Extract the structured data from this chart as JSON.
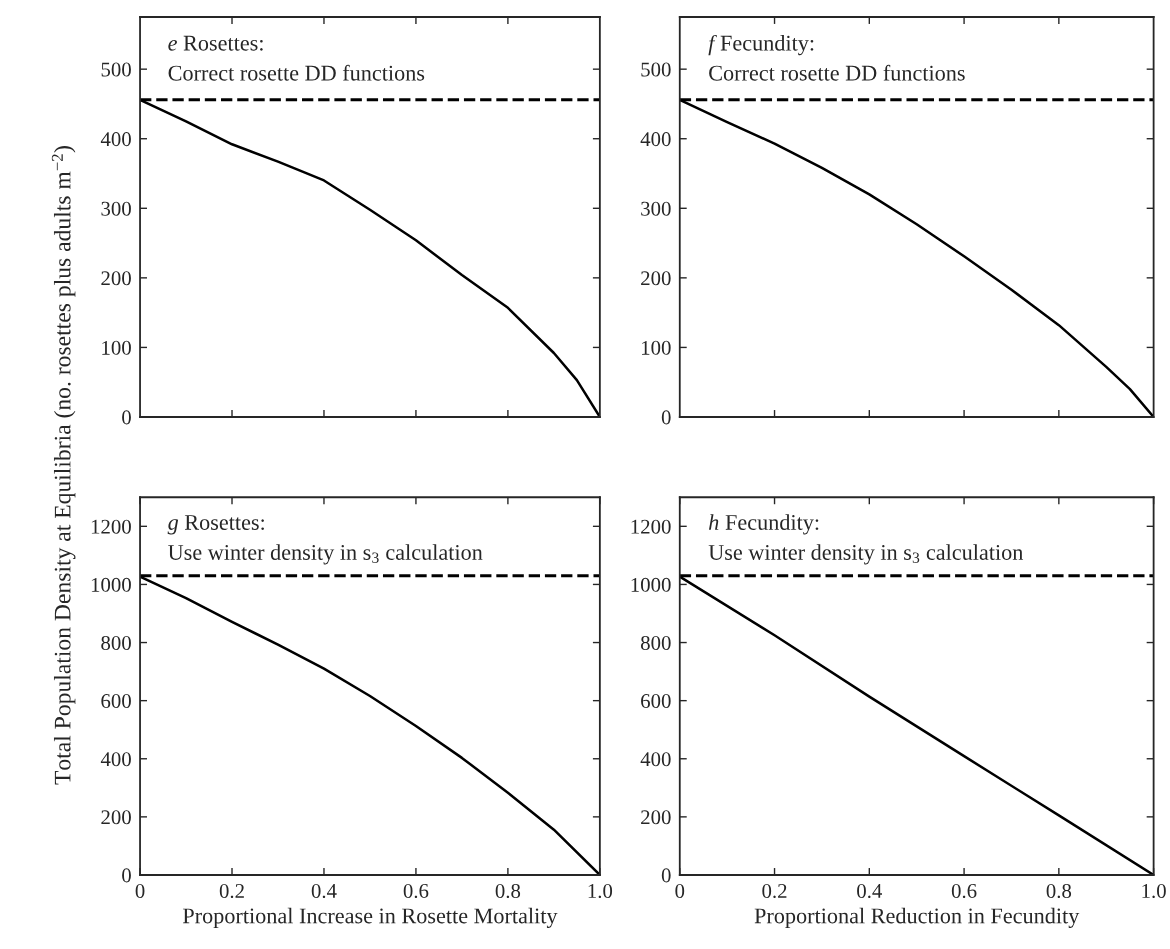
{
  "chart_data": [
    {
      "type": "line",
      "annotations": [
        "e",
        "Rosettes:",
        "Correct rosette DD functions"
      ],
      "ylabel": "Total Population Density at Equilibria (no. rosettes plus adults m$^{−2}$)",
      "x": [
        0,
        0.1,
        0.2,
        0.3,
        0.4,
        0.5,
        0.6,
        0.7,
        0.8,
        0.9,
        0.95,
        1.0
      ],
      "series": [
        {
          "color": "#000000",
          "values": [
            456,
            425,
            392,
            367,
            340,
            298,
            254,
            204,
            157,
            92,
            53,
            0
          ]
        }
      ],
      "xlim": [
        0,
        1
      ],
      "ylim": [
        0,
        575
      ],
      "xticks": [
        0.2,
        0.4,
        0.6,
        0.8
      ],
      "yticks": [
        0,
        100,
        200,
        300,
        400,
        500
      ],
      "ref_lines": [
        {
          "axis": "y",
          "value": 456,
          "color": "#000000",
          "line_style": "dashed"
        }
      ],
      "tick_labels": "y",
      "line_style": "solid"
    },
    {
      "type": "line",
      "annotations": [
        "f",
        "Fecundity:",
        "Correct rosette DD functions"
      ],
      "x": [
        0,
        0.1,
        0.2,
        0.3,
        0.4,
        0.5,
        0.6,
        0.7,
        0.8,
        0.9,
        0.95,
        1.0
      ],
      "series": [
        {
          "color": "#000000",
          "values": [
            456,
            424,
            393,
            358,
            320,
            277,
            231,
            183,
            132,
            72,
            40,
            0
          ]
        }
      ],
      "xlim": [
        0,
        1
      ],
      "ylim": [
        0,
        575
      ],
      "xticks": [
        0.2,
        0.4,
        0.6,
        0.8
      ],
      "yticks": [
        0,
        100,
        200,
        300,
        400,
        500
      ],
      "ref_lines": [
        {
          "axis": "y",
          "value": 456,
          "color": "#000000",
          "line_style": "dashed"
        }
      ],
      "tick_labels": "y",
      "line_style": "solid"
    },
    {
      "type": "line",
      "annotations": [
        "g",
        "Rosettes:",
        "Use winter density in s$_{3}$ calculation"
      ],
      "xlabel": "Proportional Increase in Rosette Mortality",
      "x": [
        0,
        0.1,
        0.2,
        0.3,
        0.4,
        0.5,
        0.6,
        0.7,
        0.8,
        0.9,
        1.0
      ],
      "series": [
        {
          "color": "#000000",
          "values": [
            1027,
            953,
            871,
            793,
            710,
            616,
            513,
            403,
            283,
            156,
            0
          ]
        }
      ],
      "xlim": [
        0,
        1
      ],
      "ylim": [
        0,
        1300
      ],
      "xticks": [
        0,
        0.2,
        0.4,
        0.6,
        0.8,
        {
          "value": 1,
          "label": "1.0"
        }
      ],
      "yticks": [
        0,
        200,
        400,
        600,
        800,
        1000,
        1200
      ],
      "ref_lines": [
        {
          "axis": "y",
          "value": 1030,
          "color": "#000000",
          "line_style": "dashed"
        }
      ],
      "line_style": "solid"
    },
    {
      "type": "line",
      "annotations": [
        "h",
        "Fecundity:",
        "Use winter density in s$_{3}$ calculation"
      ],
      "xlabel": "Proportional Reduction in Fecundity",
      "x": [
        0,
        0.2,
        0.4,
        0.6,
        0.8,
        1.0
      ],
      "series": [
        {
          "color": "#000000",
          "values": [
            1027,
            825,
            614,
            409,
            205,
            0
          ]
        }
      ],
      "xlim": [
        0,
        1
      ],
      "ylim": [
        0,
        1300
      ],
      "xticks": [
        0,
        0.2,
        0.4,
        0.6,
        0.8,
        {
          "value": 1,
          "label": "1.0"
        }
      ],
      "yticks": [
        0,
        200,
        400,
        600,
        800,
        1000,
        1200
      ],
      "ref_lines": [
        {
          "axis": "y",
          "value": 1030,
          "color": "#000000",
          "line_style": "dashed"
        }
      ],
      "line_style": "solid"
    }
  ]
}
